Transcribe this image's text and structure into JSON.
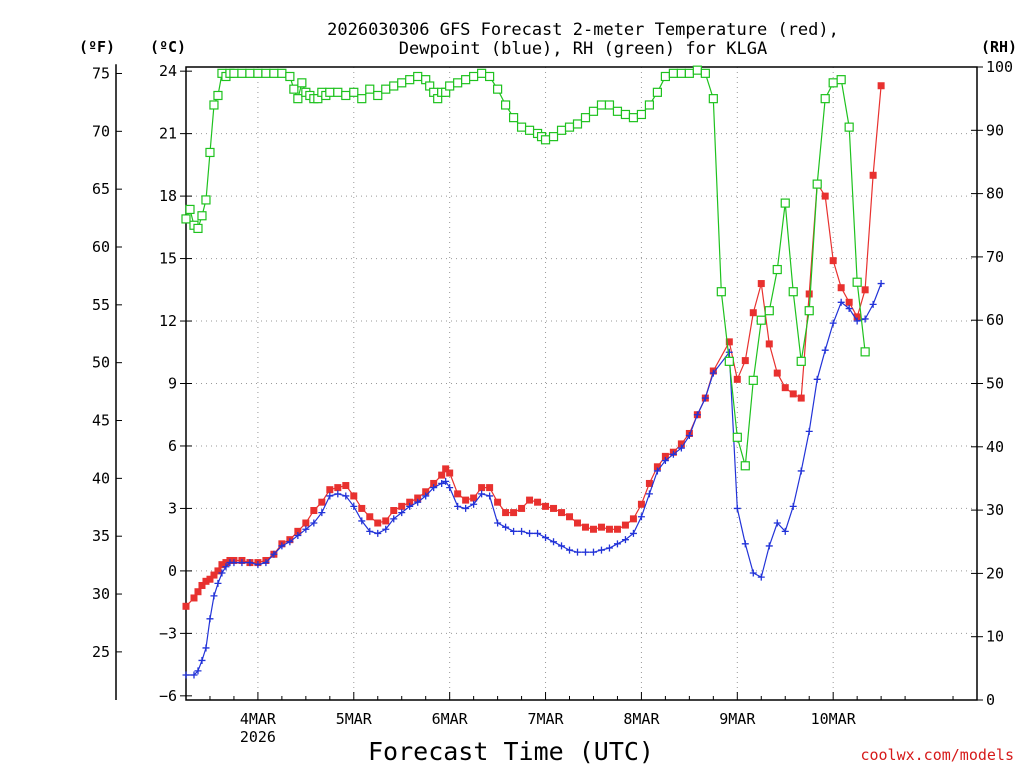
{
  "chart_data": {
    "type": "line",
    "title": "2026030306 GFS Forecast 2-meter Temperature (red),",
    "subtitle": "Dewpoint (blue), RH (green) for KLGA",
    "xlabel": "Forecast Time (UTC)",
    "credit": "coolwx.com/models",
    "units": {
      "f": "(ºF)",
      "c": "(ºC)",
      "rh": "(RH)"
    },
    "x_unit": "hours from 3 Mar 00 UTC",
    "xlim": [
      6,
      204
    ],
    "c_lim": [
      -6.2,
      24.2
    ],
    "rh_lim": [
      0,
      100
    ],
    "x_ticks": [
      {
        "x": 24,
        "label": "4MAR",
        "sublabel": "2026"
      },
      {
        "x": 48,
        "label": "5MAR"
      },
      {
        "x": 72,
        "label": "6MAR"
      },
      {
        "x": 96,
        "label": "7MAR"
      },
      {
        "x": 120,
        "label": "8MAR"
      },
      {
        "x": 144,
        "label": "9MAR"
      },
      {
        "x": 168,
        "label": "10MAR"
      }
    ],
    "c_ticks": [
      {
        "v": 24,
        "label": "24"
      },
      {
        "v": 21,
        "label": "21"
      },
      {
        "v": 18,
        "label": "18"
      },
      {
        "v": 15,
        "label": "15"
      },
      {
        "v": 12,
        "label": "12"
      },
      {
        "v": 9,
        "label": "9"
      },
      {
        "v": 6,
        "label": "6"
      },
      {
        "v": 3,
        "label": "3"
      },
      {
        "v": 0,
        "label": "0"
      },
      {
        "v": -3,
        "label": "−3"
      },
      {
        "v": -6,
        "label": "−6"
      }
    ],
    "f_ticks": [
      {
        "v": 75,
        "label": "75"
      },
      {
        "v": 70,
        "label": "70"
      },
      {
        "v": 65,
        "label": "65"
      },
      {
        "v": 60,
        "label": "60"
      },
      {
        "v": 55,
        "label": "55"
      },
      {
        "v": 50,
        "label": "50"
      },
      {
        "v": 45,
        "label": "45"
      },
      {
        "v": 40,
        "label": "40"
      },
      {
        "v": 35,
        "label": "35"
      },
      {
        "v": 30,
        "label": "30"
      },
      {
        "v": 25,
        "label": "25"
      }
    ],
    "rh_ticks": [
      {
        "v": 100,
        "label": "100"
      },
      {
        "v": 90,
        "label": "90"
      },
      {
        "v": 80,
        "label": "80"
      },
      {
        "v": 70,
        "label": "70"
      },
      {
        "v": 60,
        "label": "60"
      },
      {
        "v": 50,
        "label": "50"
      },
      {
        "v": 40,
        "label": "40"
      },
      {
        "v": 30,
        "label": "30"
      },
      {
        "v": 20,
        "label": "20"
      },
      {
        "v": 10,
        "label": "10"
      },
      {
        "v": 0,
        "label": "0"
      }
    ],
    "series": [
      {
        "name": "Temperature",
        "axis": "c",
        "color": "#e8312f",
        "marker": "filled-square",
        "points": [
          [
            6,
            -1.7
          ],
          [
            8,
            -1.3
          ],
          [
            9,
            -1.0
          ],
          [
            10,
            -0.7
          ],
          [
            11,
            -0.5
          ],
          [
            12,
            -0.4
          ],
          [
            13,
            -0.2
          ],
          [
            14,
            0.0
          ],
          [
            15,
            0.3
          ],
          [
            16,
            0.4
          ],
          [
            17,
            0.5
          ],
          [
            18,
            0.5
          ],
          [
            20,
            0.5
          ],
          [
            22,
            0.4
          ],
          [
            24,
            0.4
          ],
          [
            26,
            0.5
          ],
          [
            28,
            0.8
          ],
          [
            30,
            1.3
          ],
          [
            32,
            1.5
          ],
          [
            34,
            1.9
          ],
          [
            36,
            2.3
          ],
          [
            38,
            2.9
          ],
          [
            40,
            3.3
          ],
          [
            42,
            3.9
          ],
          [
            44,
            4.0
          ],
          [
            46,
            4.1
          ],
          [
            48,
            3.6
          ],
          [
            50,
            3.0
          ],
          [
            52,
            2.6
          ],
          [
            54,
            2.3
          ],
          [
            56,
            2.4
          ],
          [
            58,
            2.9
          ],
          [
            60,
            3.1
          ],
          [
            62,
            3.3
          ],
          [
            64,
            3.5
          ],
          [
            66,
            3.8
          ],
          [
            68,
            4.2
          ],
          [
            70,
            4.6
          ],
          [
            71,
            4.9
          ],
          [
            72,
            4.7
          ],
          [
            74,
            3.7
          ],
          [
            76,
            3.4
          ],
          [
            78,
            3.5
          ],
          [
            80,
            4.0
          ],
          [
            82,
            4.0
          ],
          [
            84,
            3.3
          ],
          [
            86,
            2.8
          ],
          [
            88,
            2.8
          ],
          [
            90,
            3.0
          ],
          [
            92,
            3.4
          ],
          [
            94,
            3.3
          ],
          [
            96,
            3.1
          ],
          [
            98,
            3.0
          ],
          [
            100,
            2.8
          ],
          [
            102,
            2.6
          ],
          [
            104,
            2.3
          ],
          [
            106,
            2.1
          ],
          [
            108,
            2.0
          ],
          [
            110,
            2.1
          ],
          [
            112,
            2.0
          ],
          [
            114,
            2.0
          ],
          [
            116,
            2.2
          ],
          [
            118,
            2.5
          ],
          [
            120,
            3.2
          ],
          [
            122,
            4.2
          ],
          [
            124,
            5.0
          ],
          [
            126,
            5.5
          ],
          [
            128,
            5.7
          ],
          [
            130,
            6.1
          ],
          [
            132,
            6.6
          ],
          [
            134,
            7.5
          ],
          [
            136,
            8.3
          ],
          [
            138,
            9.6
          ],
          [
            142,
            11.0
          ],
          [
            144,
            9.2
          ],
          [
            146,
            10.1
          ],
          [
            148,
            12.4
          ],
          [
            150,
            13.8
          ],
          [
            152,
            10.9
          ],
          [
            154,
            9.5
          ],
          [
            156,
            8.8
          ],
          [
            158,
            8.5
          ],
          [
            160,
            8.3
          ],
          [
            162,
            13.3
          ],
          [
            164,
            18.6
          ],
          [
            166,
            18.0
          ],
          [
            168,
            14.9
          ],
          [
            170,
            13.6
          ],
          [
            172,
            12.9
          ],
          [
            174,
            12.2
          ],
          [
            176,
            13.5
          ],
          [
            178,
            19.0
          ],
          [
            180,
            23.3
          ]
        ]
      },
      {
        "name": "Dewpoint",
        "axis": "c",
        "color": "#2233d8",
        "marker": "plus",
        "points": [
          [
            6,
            -5.0
          ],
          [
            8,
            -5.0
          ],
          [
            9,
            -4.8
          ],
          [
            10,
            -4.3
          ],
          [
            11,
            -3.7
          ],
          [
            12,
            -2.3
          ],
          [
            13,
            -1.2
          ],
          [
            14,
            -0.6
          ],
          [
            15,
            -0.1
          ],
          [
            16,
            0.2
          ],
          [
            17,
            0.4
          ],
          [
            18,
            0.4
          ],
          [
            20,
            0.4
          ],
          [
            22,
            0.4
          ],
          [
            24,
            0.3
          ],
          [
            26,
            0.4
          ],
          [
            28,
            0.8
          ],
          [
            30,
            1.2
          ],
          [
            32,
            1.4
          ],
          [
            34,
            1.7
          ],
          [
            36,
            2.0
          ],
          [
            38,
            2.3
          ],
          [
            40,
            2.8
          ],
          [
            42,
            3.6
          ],
          [
            44,
            3.7
          ],
          [
            46,
            3.6
          ],
          [
            48,
            3.1
          ],
          [
            50,
            2.4
          ],
          [
            52,
            1.9
          ],
          [
            54,
            1.8
          ],
          [
            56,
            2.0
          ],
          [
            58,
            2.5
          ],
          [
            60,
            2.8
          ],
          [
            62,
            3.1
          ],
          [
            64,
            3.3
          ],
          [
            66,
            3.6
          ],
          [
            68,
            4.0
          ],
          [
            70,
            4.2
          ],
          [
            71,
            4.3
          ],
          [
            72,
            4.0
          ],
          [
            74,
            3.1
          ],
          [
            76,
            3.0
          ],
          [
            78,
            3.2
          ],
          [
            80,
            3.7
          ],
          [
            82,
            3.6
          ],
          [
            84,
            2.3
          ],
          [
            86,
            2.1
          ],
          [
            88,
            1.9
          ],
          [
            90,
            1.9
          ],
          [
            92,
            1.8
          ],
          [
            94,
            1.8
          ],
          [
            96,
            1.6
          ],
          [
            98,
            1.4
          ],
          [
            100,
            1.2
          ],
          [
            102,
            1.0
          ],
          [
            104,
            0.9
          ],
          [
            106,
            0.9
          ],
          [
            108,
            0.9
          ],
          [
            110,
            1.0
          ],
          [
            112,
            1.1
          ],
          [
            114,
            1.3
          ],
          [
            116,
            1.5
          ],
          [
            118,
            1.8
          ],
          [
            120,
            2.6
          ],
          [
            122,
            3.7
          ],
          [
            124,
            4.8
          ],
          [
            126,
            5.3
          ],
          [
            128,
            5.6
          ],
          [
            130,
            5.9
          ],
          [
            132,
            6.5
          ],
          [
            134,
            7.5
          ],
          [
            136,
            8.3
          ],
          [
            138,
            9.5
          ],
          [
            142,
            10.5
          ],
          [
            144,
            3.0
          ],
          [
            146,
            1.3
          ],
          [
            148,
            -0.1
          ],
          [
            150,
            -0.3
          ],
          [
            152,
            1.2
          ],
          [
            154,
            2.3
          ],
          [
            156,
            1.9
          ],
          [
            158,
            3.1
          ],
          [
            160,
            4.8
          ],
          [
            162,
            6.7
          ],
          [
            164,
            9.2
          ],
          [
            166,
            10.6
          ],
          [
            168,
            11.9
          ],
          [
            170,
            12.9
          ],
          [
            172,
            12.6
          ],
          [
            174,
            12.0
          ],
          [
            176,
            12.1
          ],
          [
            178,
            12.8
          ],
          [
            180,
            13.8
          ]
        ]
      },
      {
        "name": "RH",
        "axis": "rh",
        "color": "#1ec21e",
        "marker": "open-square",
        "points": [
          [
            6,
            76
          ],
          [
            7,
            77.5
          ],
          [
            8,
            75
          ],
          [
            9,
            74.5
          ],
          [
            10,
            76.5
          ],
          [
            11,
            79
          ],
          [
            12,
            86.5
          ],
          [
            13,
            94
          ],
          [
            14,
            95.5
          ],
          [
            15,
            99
          ],
          [
            16,
            98.5
          ],
          [
            17,
            99
          ],
          [
            18,
            99
          ],
          [
            20,
            99
          ],
          [
            22,
            99
          ],
          [
            24,
            99
          ],
          [
            26,
            99
          ],
          [
            28,
            99
          ],
          [
            30,
            99
          ],
          [
            32,
            98.5
          ],
          [
            33,
            96.5
          ],
          [
            34,
            95
          ],
          [
            35,
            97.5
          ],
          [
            36,
            96
          ],
          [
            37,
            95.5
          ],
          [
            38,
            95
          ],
          [
            39,
            95
          ],
          [
            40,
            96
          ],
          [
            41,
            95.5
          ],
          [
            42,
            96
          ],
          [
            44,
            96
          ],
          [
            46,
            95.5
          ],
          [
            48,
            96
          ],
          [
            50,
            95
          ],
          [
            52,
            96.5
          ],
          [
            54,
            95.5
          ],
          [
            56,
            96.5
          ],
          [
            58,
            97
          ],
          [
            60,
            97.5
          ],
          [
            62,
            98
          ],
          [
            64,
            98.5
          ],
          [
            66,
            98
          ],
          [
            67,
            97
          ],
          [
            68,
            96
          ],
          [
            69,
            95
          ],
          [
            70,
            96
          ],
          [
            71,
            96
          ],
          [
            72,
            97
          ],
          [
            74,
            97.5
          ],
          [
            76,
            98
          ],
          [
            78,
            98.5
          ],
          [
            80,
            99
          ],
          [
            82,
            98.5
          ],
          [
            84,
            96.5
          ],
          [
            86,
            94
          ],
          [
            88,
            92
          ],
          [
            90,
            90.5
          ],
          [
            92,
            90
          ],
          [
            94,
            89.5
          ],
          [
            95,
            89
          ],
          [
            96,
            88.5
          ],
          [
            98,
            89
          ],
          [
            100,
            90
          ],
          [
            102,
            90.5
          ],
          [
            104,
            91
          ],
          [
            106,
            92
          ],
          [
            108,
            93
          ],
          [
            110,
            94
          ],
          [
            112,
            94
          ],
          [
            114,
            93
          ],
          [
            116,
            92.5
          ],
          [
            118,
            92
          ],
          [
            120,
            92.5
          ],
          [
            122,
            94
          ],
          [
            124,
            96
          ],
          [
            126,
            98.5
          ],
          [
            128,
            99
          ],
          [
            130,
            99
          ],
          [
            132,
            99
          ],
          [
            134,
            99.5
          ],
          [
            136,
            99
          ],
          [
            138,
            95
          ],
          [
            140,
            64.5
          ],
          [
            142,
            53.5
          ],
          [
            144,
            41.5
          ],
          [
            146,
            37
          ],
          [
            148,
            50.5
          ],
          [
            150,
            60
          ],
          [
            152,
            61.5
          ],
          [
            154,
            68
          ],
          [
            156,
            78.5
          ],
          [
            158,
            64.5
          ],
          [
            160,
            53.5
          ],
          [
            162,
            61.5
          ],
          [
            164,
            81.5
          ],
          [
            166,
            95
          ],
          [
            168,
            97.5
          ],
          [
            170,
            98
          ],
          [
            172,
            90.5
          ],
          [
            174,
            66
          ],
          [
            176,
            55
          ]
        ]
      }
    ]
  }
}
